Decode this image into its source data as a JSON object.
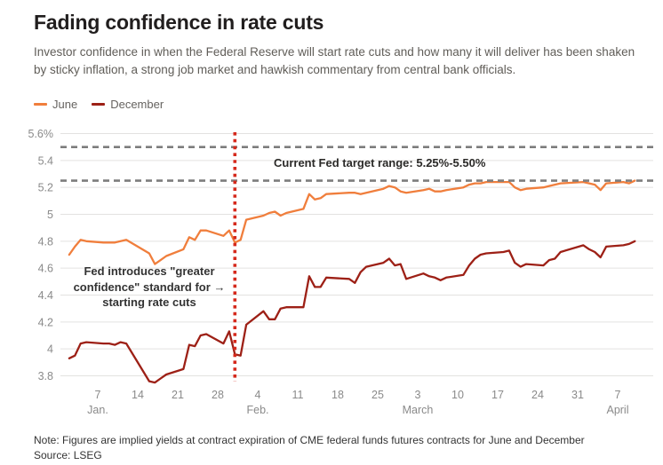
{
  "header": {
    "title": "Fading confidence in rate cuts",
    "subtitle": "Investor confidence in when the Federal Reserve will start rate cuts and how many it will deliver has been shaken by sticky inflation, a strong job market and hawkish commentary from central bank officials."
  },
  "legend": {
    "items": [
      {
        "label": "June",
        "color": "#f07e3c"
      },
      {
        "label": "December",
        "color": "#9d2016"
      }
    ]
  },
  "annotations": {
    "target_range": "Current Fed target range: 5.25%-5.50%",
    "fed_note": {
      "line1": "Fed introduces \"greater",
      "line2": "confidence\" standard for",
      "arrow": "→",
      "line3": "starting rate cuts"
    }
  },
  "footer": {
    "note": "Note: Figures are implied yields at contract expiration of CME federal funds futures contracts for June and December",
    "source": "Source: LSEG"
  },
  "chart_data": {
    "type": "line",
    "title": "Fading confidence in rate cuts",
    "xlabel": "",
    "ylabel": "",
    "ylim": [
      3.8,
      5.6
    ],
    "grid": true,
    "grid_color": "#e3e2e0",
    "axis_text_color": "#8a8a8a",
    "yticks": [
      {
        "v": 5.6,
        "label": "5.6%"
      },
      {
        "v": 5.4,
        "label": "5.4"
      },
      {
        "v": 5.2,
        "label": "5.2"
      },
      {
        "v": 5.0,
        "label": "5"
      },
      {
        "v": 4.8,
        "label": "4.8"
      },
      {
        "v": 4.6,
        "label": "4.6"
      },
      {
        "v": 4.4,
        "label": "4.4"
      },
      {
        "v": 4.2,
        "label": "4.2"
      },
      {
        "v": 4.0,
        "label": "4"
      },
      {
        "v": 3.8,
        "label": "3.8"
      }
    ],
    "xticks": [
      {
        "day": 7,
        "label": "7"
      },
      {
        "day": 14,
        "label": "14"
      },
      {
        "day": 21,
        "label": "21"
      },
      {
        "day": 28,
        "label": "28"
      },
      {
        "day": 35,
        "label": "4"
      },
      {
        "day": 42,
        "label": "11"
      },
      {
        "day": 49,
        "label": "18"
      },
      {
        "day": 56,
        "label": "25"
      },
      {
        "day": 63,
        "label": "3"
      },
      {
        "day": 70,
        "label": "10"
      },
      {
        "day": 77,
        "label": "17"
      },
      {
        "day": 84,
        "label": "24"
      },
      {
        "day": 91,
        "label": "31"
      },
      {
        "day": 98,
        "label": "7"
      }
    ],
    "month_labels": [
      {
        "day": 7,
        "label": "Jan."
      },
      {
        "day": 35,
        "label": "Feb."
      },
      {
        "day": 63,
        "label": "March"
      },
      {
        "day": 98,
        "label": "April"
      }
    ],
    "target_range_lines": {
      "values": [
        5.5,
        5.25
      ],
      "color": "#7d7d7d"
    },
    "event_line": {
      "day": 31,
      "color": "#d5291c",
      "meaning": "Fed introduces greater confidence standard"
    },
    "x_days": [
      2,
      3,
      4,
      5,
      8,
      9,
      10,
      11,
      12,
      16,
      17,
      18,
      19,
      22,
      23,
      24,
      25,
      26,
      29,
      30,
      31,
      32,
      33,
      36,
      37,
      38,
      39,
      40,
      43,
      44,
      45,
      46,
      47,
      51,
      52,
      53,
      54,
      57,
      58,
      59,
      60,
      61,
      64,
      65,
      66,
      67,
      68,
      71,
      72,
      73,
      74,
      75,
      78,
      79,
      80,
      81,
      82,
      85,
      86,
      87,
      88,
      92,
      93,
      94,
      95,
      96,
      99,
      100,
      101
    ],
    "series": [
      {
        "name": "June",
        "color": "#f07e3c",
        "values": [
          4.7,
          4.76,
          4.81,
          4.8,
          4.79,
          4.79,
          4.79,
          4.8,
          4.81,
          4.71,
          4.63,
          4.66,
          4.69,
          4.74,
          4.83,
          4.81,
          4.88,
          4.88,
          4.84,
          4.88,
          4.79,
          4.81,
          4.96,
          4.99,
          5.01,
          5.02,
          4.99,
          5.01,
          5.04,
          5.15,
          5.11,
          5.12,
          5.15,
          5.16,
          5.16,
          5.15,
          5.16,
          5.19,
          5.21,
          5.2,
          5.17,
          5.16,
          5.18,
          5.19,
          5.17,
          5.17,
          5.18,
          5.2,
          5.22,
          5.23,
          5.23,
          5.24,
          5.24,
          5.24,
          5.2,
          5.18,
          5.19,
          5.2,
          5.21,
          5.22,
          5.23,
          5.24,
          5.23,
          5.22,
          5.18,
          5.23,
          5.24,
          5.23,
          5.25
        ]
      },
      {
        "name": "December",
        "color": "#9d2016",
        "values": [
          3.93,
          3.95,
          4.04,
          4.05,
          4.04,
          4.04,
          4.03,
          4.05,
          4.04,
          3.76,
          3.75,
          3.78,
          3.81,
          3.85,
          4.03,
          4.02,
          4.1,
          4.11,
          4.04,
          4.13,
          3.96,
          3.95,
          4.18,
          4.28,
          4.22,
          4.22,
          4.3,
          4.31,
          4.31,
          4.54,
          4.46,
          4.46,
          4.53,
          4.52,
          4.49,
          4.57,
          4.61,
          4.64,
          4.67,
          4.62,
          4.63,
          4.52,
          4.56,
          4.54,
          4.53,
          4.51,
          4.53,
          4.55,
          4.62,
          4.67,
          4.7,
          4.71,
          4.72,
          4.73,
          4.64,
          4.61,
          4.63,
          4.62,
          4.66,
          4.67,
          4.72,
          4.77,
          4.74,
          4.72,
          4.68,
          4.76,
          4.77,
          4.78,
          4.8
        ]
      }
    ]
  }
}
